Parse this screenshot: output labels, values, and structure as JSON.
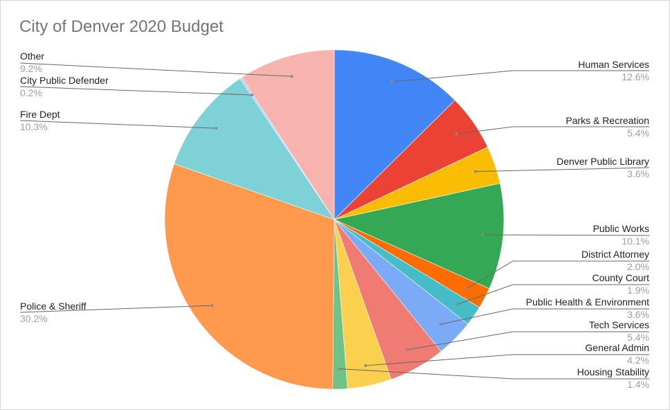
{
  "chart_data": {
    "type": "pie",
    "title": "City of Denver 2020 Budget",
    "slices": [
      {
        "label": "Human Services",
        "value": 12.6,
        "display": "12.6%",
        "color": "#4285F4"
      },
      {
        "label": "Parks & Recreation",
        "value": 5.4,
        "display": "5.4%",
        "color": "#EA4335"
      },
      {
        "label": "Denver Public Library",
        "value": 3.6,
        "display": "3.6%",
        "color": "#FBBC04"
      },
      {
        "label": "Public Works",
        "value": 10.1,
        "display": "10.1%",
        "color": "#34A853"
      },
      {
        "label": "District Attorney",
        "value": 2.0,
        "display": "2.0%",
        "color": "#FF6D01"
      },
      {
        "label": "County Court",
        "value": 1.9,
        "display": "1.9%",
        "color": "#46BDC6"
      },
      {
        "label": "Public Health & Environment",
        "value": 3.6,
        "display": "3.6%",
        "color": "#7BAAF7"
      },
      {
        "label": "Tech Services",
        "value": 5.4,
        "display": "5.4%",
        "color": "#F07B72"
      },
      {
        "label": "General Admin",
        "value": 4.2,
        "display": "4.2%",
        "color": "#FCD04F"
      },
      {
        "label": "Housing Stability",
        "value": 1.4,
        "display": "1.4%",
        "color": "#71C287"
      },
      {
        "label": "Police & Sheriff",
        "value": 30.2,
        "display": "30.2%",
        "color": "#FF994D"
      },
      {
        "label": "Fire Dept",
        "value": 10.3,
        "display": "10.3%",
        "color": "#7ED1D7"
      },
      {
        "label": "City Public Defender",
        "value": 0.2,
        "display": "0.2%",
        "color": "#B3CEFB"
      },
      {
        "label": "Other",
        "value": 9.2,
        "display": "9.2%",
        "color": "#F7B4AE"
      }
    ]
  }
}
